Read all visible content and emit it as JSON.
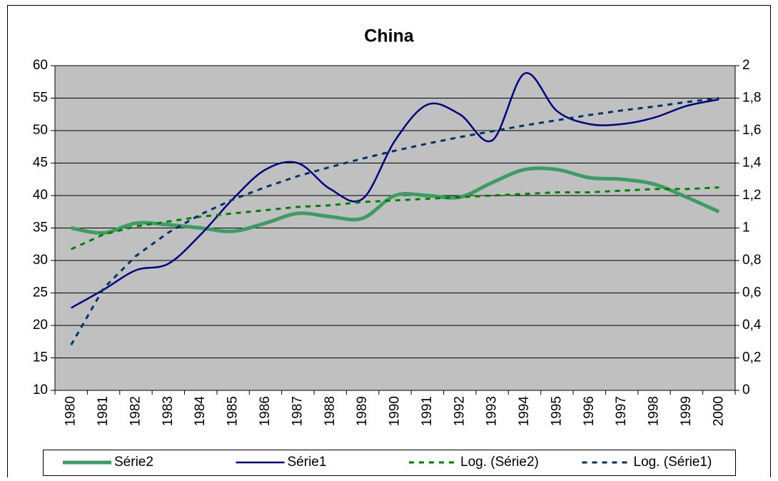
{
  "chart_data": {
    "type": "line",
    "title": "China",
    "categories": [
      "1980",
      "1981",
      "1982",
      "1983",
      "1984",
      "1985",
      "1986",
      "1987",
      "1988",
      "1989",
      "1990",
      "1991",
      "1992",
      "1993",
      "1994",
      "1995",
      "1996",
      "1997",
      "1998",
      "1999",
      "2000"
    ],
    "series": [
      {
        "name": "Série2",
        "color": "#3c9c64",
        "axis": "y2",
        "style": "solid",
        "width": 5,
        "values": [
          1.0,
          0.97,
          1.03,
          1.02,
          1.0,
          0.98,
          1.03,
          1.09,
          1.07,
          1.06,
          1.2,
          1.2,
          1.19,
          1.28,
          1.36,
          1.36,
          1.31,
          1.3,
          1.27,
          1.19,
          1.1
        ]
      },
      {
        "name": "Série1",
        "color": "#000080",
        "axis": "y",
        "style": "solid",
        "width": 2.5,
        "values": [
          22.7,
          25.5,
          28.5,
          29.5,
          34,
          39.5,
          44,
          45,
          41,
          39.5,
          48.5,
          54,
          52.5,
          48.5,
          58.8,
          53,
          51,
          51,
          52,
          53.8,
          54.8
        ]
      },
      {
        "name": "Log. (Série2)",
        "color": "#008000",
        "axis": "y2",
        "style": "dashed",
        "width": 3,
        "values": [
          0.87,
          0.96,
          1.01,
          1.04,
          1.07,
          1.09,
          1.11,
          1.13,
          1.14,
          1.16,
          1.17,
          1.18,
          1.19,
          1.2,
          1.21,
          1.22,
          1.22,
          1.23,
          1.24,
          1.24,
          1.25
        ]
      },
      {
        "name": "Log. (Série1)",
        "color": "#003366",
        "axis": "y",
        "style": "dashed",
        "width": 3,
        "values": [
          17,
          25.7,
          30.7,
          34.3,
          37.1,
          39.4,
          41.3,
          43,
          44.4,
          45.7,
          46.9,
          48,
          49,
          49.9,
          50.8,
          51.6,
          52.4,
          53.1,
          53.7,
          54.4,
          55
        ]
      }
    ],
    "ylim": [
      10,
      60
    ],
    "yticks": [
      10,
      15,
      20,
      25,
      30,
      35,
      40,
      45,
      50,
      55,
      60
    ],
    "y2lim": [
      0,
      2
    ],
    "y2ticks": [
      0,
      {
        "value": 0.2,
        "label": "0,2"
      },
      {
        "value": 0.4,
        "label": "0,4"
      },
      {
        "value": 0.6,
        "label": "0,6"
      },
      {
        "value": 0.8,
        "label": "0,8"
      },
      1,
      {
        "value": 1.2,
        "label": "1,2"
      },
      {
        "value": 1.4,
        "label": "1,4"
      },
      {
        "value": 1.6,
        "label": "1,6"
      },
      {
        "value": 1.8,
        "label": "1,8"
      },
      2
    ],
    "grid": true,
    "legend": "bottom",
    "plot_background": "#c0c0c0"
  }
}
